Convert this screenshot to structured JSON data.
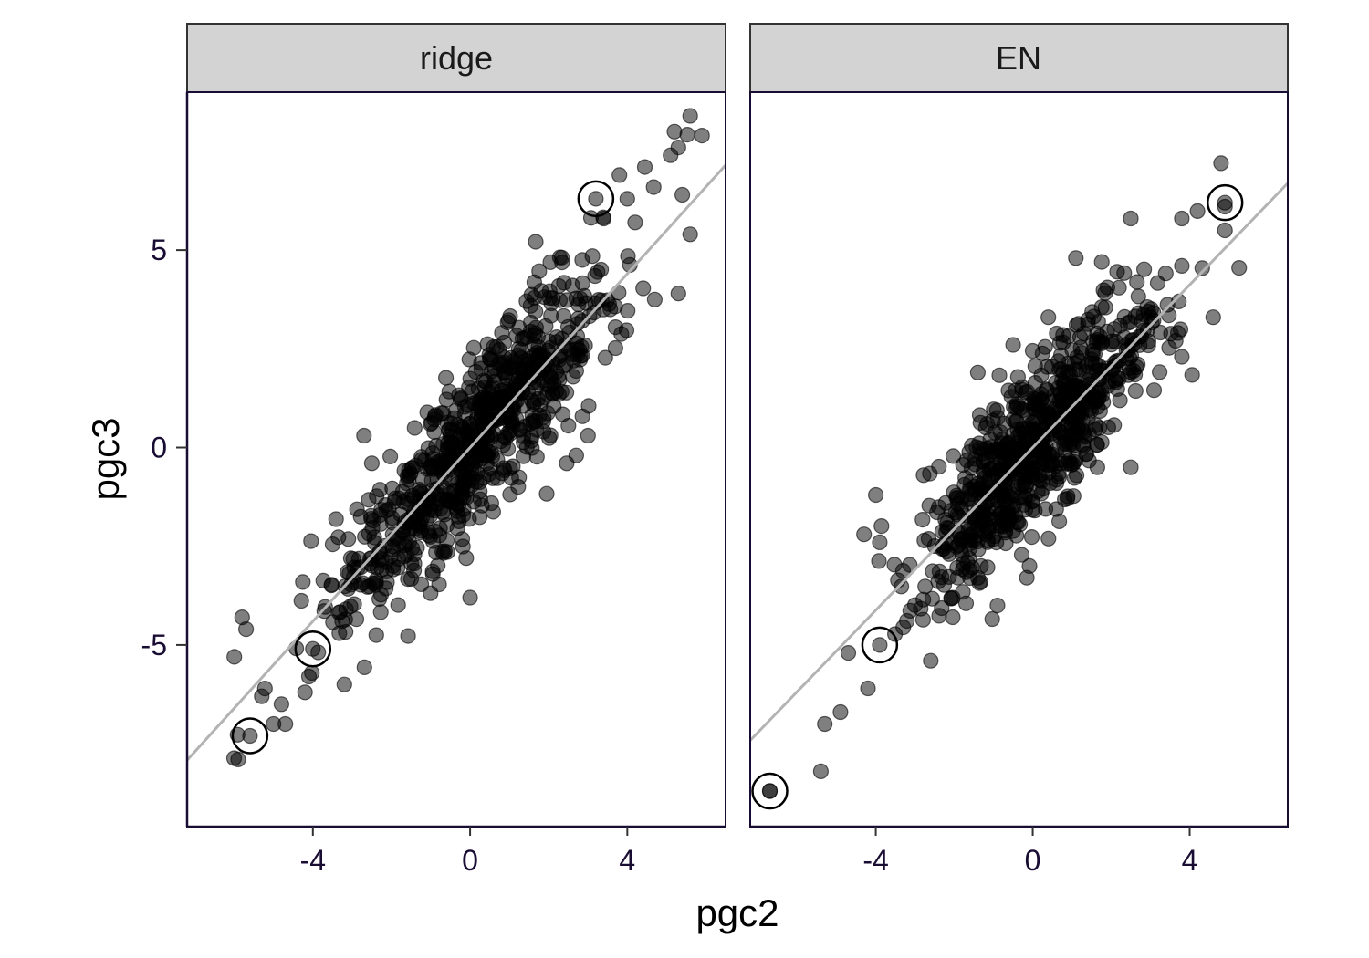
{
  "chart_data": {
    "type": "scatter",
    "xlabel": "pgc2",
    "ylabel": "pgc3",
    "xlim": [
      -7.2,
      6.5
    ],
    "ylim": [
      -9.6,
      9.0
    ],
    "x_ticks": [
      -4,
      0,
      4
    ],
    "x_tick_labels": [
      "-4",
      "0",
      "4"
    ],
    "y_ticks": [
      5,
      0,
      -5
    ],
    "y_tick_labels": [
      "5",
      "0",
      "-5"
    ],
    "grid": false,
    "colors": {
      "points": "#000000",
      "fit_line": "#b3b3b3",
      "strip": "#d3d3d3"
    },
    "panels": [
      {
        "label": "ridge",
        "fit_line": {
          "intercept": 0.0,
          "slope": 1.1
        },
        "highlighted": [
          {
            "x": 3.2,
            "y": 6.3
          },
          {
            "x": -4.0,
            "y": -5.1
          },
          {
            "x": -5.6,
            "y": -7.3
          }
        ],
        "seed": 17,
        "n_points": 760,
        "sd_x": 1.75,
        "noise_sd": 1.05,
        "extra_points": [
          {
            "x": 5.6,
            "y": 8.4
          },
          {
            "x": 5.2,
            "y": 8.0
          },
          {
            "x": 5.9,
            "y": 7.9
          },
          {
            "x": 5.3,
            "y": 7.6
          },
          {
            "x": 5.1,
            "y": 7.4
          },
          {
            "x": 3.8,
            "y": 6.9
          },
          {
            "x": 4.0,
            "y": 6.3
          },
          {
            "x": 3.4,
            "y": 5.8
          },
          {
            "x": 5.4,
            "y": 6.4
          },
          {
            "x": 4.2,
            "y": 5.7
          },
          {
            "x": 5.6,
            "y": 5.4
          },
          {
            "x": 5.3,
            "y": 3.9
          },
          {
            "x": -5.9,
            "y": -7.9
          },
          {
            "x": -5.3,
            "y": -6.3
          },
          {
            "x": -5.0,
            "y": -7.0
          },
          {
            "x": -4.7,
            "y": -7.0
          },
          {
            "x": -6.0,
            "y": -5.3
          },
          {
            "x": -5.8,
            "y": -4.3
          },
          {
            "x": -5.7,
            "y": -4.6
          },
          {
            "x": -4.8,
            "y": -6.5
          },
          {
            "x": -4.2,
            "y": -6.2
          },
          {
            "x": -3.2,
            "y": -6.0
          },
          {
            "x": -4.1,
            "y": -5.8
          },
          {
            "x": 0.0,
            "y": -3.8
          },
          {
            "x": -0.1,
            "y": -2.8
          },
          {
            "x": 2.7,
            "y": -0.2
          },
          {
            "x": 3.0,
            "y": 0.3
          },
          {
            "x": -2.7,
            "y": 0.3
          },
          {
            "x": -2.5,
            "y": -0.4
          }
        ]
      },
      {
        "label": "EN",
        "fit_line": {
          "intercept": 0.0,
          "slope": 1.03
        },
        "highlighted": [
          {
            "x": 4.9,
            "y": 6.2
          },
          {
            "x": -3.9,
            "y": -5.0
          },
          {
            "x": -6.7,
            "y": -8.7
          }
        ],
        "seed": 42,
        "n_points": 760,
        "sd_x": 1.55,
        "noise_sd": 1.0,
        "extra_points": [
          {
            "x": 4.8,
            "y": 7.2
          },
          {
            "x": 4.9,
            "y": 6.1
          },
          {
            "x": 4.9,
            "y": 5.5
          },
          {
            "x": 3.8,
            "y": 5.8
          },
          {
            "x": 2.5,
            "y": 5.8
          },
          {
            "x": 1.1,
            "y": 4.8
          },
          {
            "x": 4.6,
            "y": 3.3
          },
          {
            "x": 3.7,
            "y": 2.9
          },
          {
            "x": 3.8,
            "y": 2.3
          },
          {
            "x": 3.8,
            "y": 4.6
          },
          {
            "x": -6.7,
            "y": -8.7
          },
          {
            "x": -5.4,
            "y": -8.2
          },
          {
            "x": -5.3,
            "y": -7.0
          },
          {
            "x": -4.9,
            "y": -6.7
          },
          {
            "x": -4.2,
            "y": -6.1
          },
          {
            "x": -4.7,
            "y": -5.2
          },
          {
            "x": -4.3,
            "y": -2.2
          },
          {
            "x": -4.0,
            "y": -1.2
          },
          {
            "x": -3.9,
            "y": -2.4
          },
          {
            "x": -2.6,
            "y": -5.4
          },
          {
            "x": -0.9,
            "y": -4.0
          },
          {
            "x": 2.5,
            "y": -0.5
          },
          {
            "x": 0.8,
            "y": 1.6
          },
          {
            "x": -1.4,
            "y": 1.9
          },
          {
            "x": 0.4,
            "y": 3.3
          },
          {
            "x": -0.5,
            "y": 2.6
          }
        ]
      }
    ]
  }
}
